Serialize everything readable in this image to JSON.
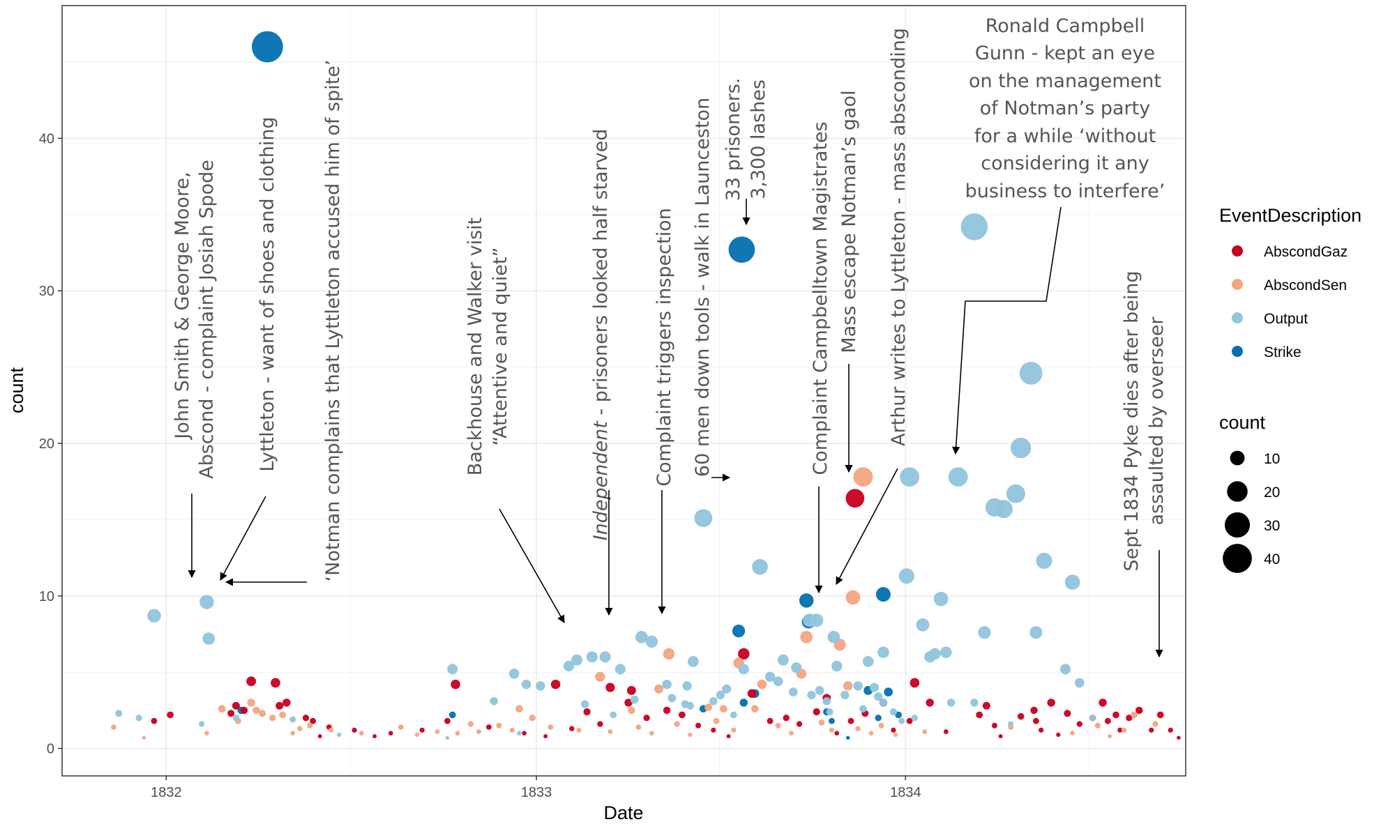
{
  "chart_data": {
    "type": "scatter",
    "xlabel": "Date",
    "ylabel": "count",
    "x_range": [
      "1831-09-20",
      "1834-10-05"
    ],
    "ylim": [
      -1.8,
      48.7
    ],
    "x_ticks": [
      {
        "date": "1832-01-01",
        "label": "1832"
      },
      {
        "date": "1833-01-01",
        "label": "1833"
      },
      {
        "date": "1834-01-01",
        "label": "1834"
      }
    ],
    "x_minor_ticks": [
      "1832-07-01",
      "1833-07-01",
      "1834-07-01"
    ],
    "y_ticks": [
      0,
      10,
      20,
      30,
      40
    ],
    "y_minor_ticks": [
      5,
      15,
      25,
      35,
      45
    ],
    "grid": true,
    "legend_position": "right",
    "colors": {
      "AbscondGaz": "#ca0020",
      "AbscondSen": "#f4a582",
      "Output": "#92c5de",
      "Strike": "#0571b0"
    },
    "legend": {
      "color_title": "EventDescription",
      "color_items": [
        "AbscondGaz",
        "AbscondSen",
        "Output",
        "Strike"
      ],
      "size_title": "count",
      "size_items": [
        10,
        20,
        30,
        40
      ]
    },
    "series": [
      {
        "name": "Strike",
        "points": [
          [
            "1832-04-10",
            46
          ],
          [
            "1833-07-23",
            32.7
          ],
          [
            "1833-07-20",
            7.7
          ],
          [
            "1833-09-25",
            9.7
          ],
          [
            "1833-09-27",
            8.3
          ],
          [
            "1833-12-10",
            10.1
          ],
          [
            "1832-03-15",
            2.5
          ],
          [
            "1832-10-10",
            2.2
          ],
          [
            "1833-06-15",
            2.6
          ],
          [
            "1833-07-25",
            3.0
          ],
          [
            "1833-08-05",
            3.6
          ],
          [
            "1833-10-15",
            2.4
          ],
          [
            "1833-11-25",
            3.8
          ],
          [
            "1833-12-15",
            3.7
          ],
          [
            "1833-12-25",
            2.2
          ],
          [
            "1833-10-20",
            1.8
          ],
          [
            "1833-11-05",
            0.7
          ],
          [
            "1833-12-05",
            2.0
          ]
        ]
      },
      {
        "name": "AbscondGaz",
        "points": [
          [
            "1833-11-12",
            16.4
          ],
          [
            "1833-07-25",
            6.2
          ],
          [
            "1832-03-25",
            4.4
          ],
          [
            "1832-04-18",
            4.3
          ],
          [
            "1832-10-13",
            4.2
          ],
          [
            "1833-01-20",
            4.2
          ],
          [
            "1833-03-15",
            4.0
          ],
          [
            "1833-04-05",
            3.8
          ],
          [
            "1833-08-02",
            3.6
          ],
          [
            "1833-04-02",
            3.0
          ],
          [
            "1833-10-15",
            3.3
          ],
          [
            "1833-12-10",
            3.0
          ],
          [
            "1834-05-25",
            3.0
          ],
          [
            "1834-05-08",
            2.5
          ],
          [
            "1834-04-25",
            2.1
          ],
          [
            "1834-01-10",
            4.3
          ],
          [
            "1834-01-25",
            3.0
          ],
          [
            "1834-03-15",
            2.2
          ],
          [
            "1834-03-22",
            2.8
          ],
          [
            "1834-04-05",
            0.8
          ],
          [
            "1834-05-10",
            1.8
          ],
          [
            "1834-07-05",
            2.0
          ],
          [
            "1834-07-15",
            3.0
          ],
          [
            "1834-07-20",
            1.8
          ],
          [
            "1834-07-28",
            2.2
          ],
          [
            "1834-08-10",
            2.0
          ],
          [
            "1834-08-20",
            2.5
          ],
          [
            "1834-09-01",
            1.2
          ],
          [
            "1834-09-10",
            2.2
          ],
          [
            "1834-09-20",
            1.2
          ],
          [
            "1834-09-28",
            0.7
          ],
          [
            "1834-06-22",
            1.6
          ],
          [
            "1834-06-10",
            2.3
          ],
          [
            "1834-02-10",
            1.1
          ],
          [
            "1832-01-05",
            2.2
          ],
          [
            "1831-12-20",
            1.8
          ],
          [
            "1832-03-05",
            2.3
          ],
          [
            "1832-03-10",
            2.8
          ],
          [
            "1832-03-18",
            2.5
          ],
          [
            "1832-04-22",
            2.8
          ],
          [
            "1832-04-29",
            3.0
          ],
          [
            "1832-05-18",
            2.0
          ],
          [
            "1832-05-25",
            1.8
          ],
          [
            "1832-06-01",
            0.8
          ],
          [
            "1832-06-10",
            1.4
          ],
          [
            "1832-07-05",
            1.2
          ],
          [
            "1832-07-25",
            0.8
          ],
          [
            "1832-08-10",
            1.0
          ],
          [
            "1832-09-10",
            1.2
          ],
          [
            "1832-10-05",
            1.8
          ],
          [
            "1832-11-15",
            1.4
          ],
          [
            "1832-12-20",
            1.0
          ],
          [
            "1833-01-10",
            0.8
          ],
          [
            "1833-02-05",
            1.3
          ],
          [
            "1833-02-20",
            2.4
          ],
          [
            "1833-03-05",
            1.6
          ],
          [
            "1833-04-20",
            2.0
          ],
          [
            "1833-05-10",
            2.5
          ],
          [
            "1833-05-25",
            2.2
          ],
          [
            "1833-06-10",
            1.5
          ],
          [
            "1833-06-25",
            1.2
          ],
          [
            "1833-07-10",
            0.8
          ],
          [
            "1833-08-20",
            1.8
          ],
          [
            "1833-09-05",
            2.0
          ],
          [
            "1833-09-18",
            1.6
          ],
          [
            "1833-10-05",
            2.4
          ],
          [
            "1833-10-25",
            1.0
          ],
          [
            "1833-11-08",
            1.8
          ],
          [
            "1833-11-22",
            2.3
          ],
          [
            "1833-12-20",
            1.2
          ],
          [
            "1834-01-05",
            1.8
          ],
          [
            "1834-03-30",
            1.5
          ],
          [
            "1834-05-15",
            1.2
          ],
          [
            "1834-06-01",
            0.9
          ],
          [
            "1834-08-01",
            1.2
          ]
        ]
      },
      {
        "name": "AbscondSen",
        "points": [
          [
            "1833-11-20",
            17.8
          ],
          [
            "1833-11-10",
            9.9
          ],
          [
            "1833-09-25",
            7.3
          ],
          [
            "1833-10-28",
            6.8
          ],
          [
            "1833-07-20",
            5.6
          ],
          [
            "1833-08-12",
            4.2
          ],
          [
            "1833-03-05",
            4.7
          ],
          [
            "1833-05-12",
            6.2
          ],
          [
            "1833-09-20",
            4.9
          ],
          [
            "1833-05-02",
            3.9
          ],
          [
            "1833-04-05",
            2.5
          ],
          [
            "1832-03-25",
            3.0
          ],
          [
            "1832-03-30",
            2.5
          ],
          [
            "1832-04-15",
            2.0
          ],
          [
            "1832-12-15",
            2.6
          ],
          [
            "1833-11-05",
            4.1
          ],
          [
            "1833-06-20",
            2.7
          ],
          [
            "1833-07-05",
            2.6
          ],
          [
            "1833-08-05",
            2.6
          ],
          [
            "1834-08-15",
            2.2
          ],
          [
            "1834-08-05",
            1.2
          ],
          [
            "1831-11-10",
            1.4
          ],
          [
            "1831-12-10",
            0.7
          ],
          [
            "1832-02-10",
            1.0
          ],
          [
            "1832-02-25",
            2.6
          ],
          [
            "1832-03-12",
            1.8
          ],
          [
            "1832-04-05",
            2.3
          ],
          [
            "1832-04-25",
            2.2
          ],
          [
            "1832-05-05",
            1.0
          ],
          [
            "1832-05-12",
            1.3
          ],
          [
            "1832-05-22",
            1.5
          ],
          [
            "1832-06-12",
            1.2
          ],
          [
            "1832-07-12",
            1.0
          ],
          [
            "1832-08-20",
            1.4
          ],
          [
            "1832-09-05",
            0.9
          ],
          [
            "1832-09-25",
            1.1
          ],
          [
            "1832-10-15",
            1.0
          ],
          [
            "1832-10-28",
            1.6
          ],
          [
            "1832-11-05",
            1.1
          ],
          [
            "1832-11-25",
            1.5
          ],
          [
            "1832-12-08",
            1.2
          ],
          [
            "1832-12-28",
            2.0
          ],
          [
            "1833-01-15",
            1.4
          ],
          [
            "1833-02-12",
            1.2
          ],
          [
            "1833-03-15",
            1.1
          ],
          [
            "1833-04-12",
            1.4
          ],
          [
            "1833-04-25",
            1.0
          ],
          [
            "1833-05-20",
            1.6
          ],
          [
            "1833-06-02",
            0.9
          ],
          [
            "1833-06-28",
            1.8
          ],
          [
            "1833-07-15",
            1.2
          ],
          [
            "1833-08-28",
            1.5
          ],
          [
            "1833-09-10",
            1.0
          ],
          [
            "1833-10-10",
            1.7
          ],
          [
            "1833-10-20",
            1.2
          ],
          [
            "1833-11-15",
            1.3
          ],
          [
            "1833-11-28",
            1.0
          ],
          [
            "1833-12-08",
            1.5
          ],
          [
            "1833-12-22",
            0.9
          ],
          [
            "1834-01-20",
            1.1
          ],
          [
            "1834-04-15",
            1.4
          ],
          [
            "1834-06-15",
            1.0
          ],
          [
            "1834-07-10",
            1.5
          ],
          [
            "1834-07-22",
            0.8
          ],
          [
            "1834-09-05",
            1.6
          ]
        ]
      },
      {
        "name": "Output",
        "points": [
          [
            "1834-03-10",
            34.2
          ],
          [
            "1834-05-05",
            24.6
          ],
          [
            "1834-04-25",
            19.7
          ],
          [
            "1834-01-05",
            17.8
          ],
          [
            "1834-02-22",
            17.8
          ],
          [
            "1834-04-20",
            16.7
          ],
          [
            "1834-03-30",
            15.8
          ],
          [
            "1834-04-08",
            15.7
          ],
          [
            "1834-05-18",
            12.3
          ],
          [
            "1834-02-05",
            9.8
          ],
          [
            "1834-06-15",
            10.9
          ],
          [
            "1834-01-02",
            11.3
          ],
          [
            "1833-06-15",
            15.1
          ],
          [
            "1833-08-10",
            11.9
          ],
          [
            "1833-10-05",
            8.4
          ],
          [
            "1833-09-28",
            8.4
          ],
          [
            "1833-10-22",
            7.3
          ],
          [
            "1833-04-15",
            7.3
          ],
          [
            "1833-04-25",
            7.0
          ],
          [
            "1834-01-18",
            8.1
          ],
          [
            "1834-03-20",
            7.6
          ],
          [
            "1834-05-10",
            7.6
          ],
          [
            "1834-01-25",
            6.0
          ],
          [
            "1834-01-30",
            6.2
          ],
          [
            "1834-02-10",
            6.3
          ],
          [
            "1833-12-10",
            6.3
          ],
          [
            "1833-11-25",
            5.7
          ],
          [
            "1832-02-10",
            9.6
          ],
          [
            "1831-12-20",
            8.7
          ],
          [
            "1832-02-12",
            7.2
          ],
          [
            "1833-02-25",
            6.0
          ],
          [
            "1833-03-25",
            5.2
          ],
          [
            "1833-02-10",
            5.8
          ],
          [
            "1833-02-02",
            5.4
          ],
          [
            "1832-10-10",
            5.2
          ],
          [
            "1832-12-10",
            4.9
          ],
          [
            "1833-01-05",
            4.1
          ],
          [
            "1832-12-22",
            4.2
          ],
          [
            "1832-11-20",
            3.1
          ],
          [
            "1833-03-10",
            6.0
          ],
          [
            "1833-05-10",
            4.2
          ],
          [
            "1833-05-30",
            4.1
          ],
          [
            "1833-06-05",
            5.7
          ],
          [
            "1833-07-25",
            5.2
          ],
          [
            "1833-08-20",
            4.7
          ],
          [
            "1833-09-02",
            5.8
          ],
          [
            "1833-09-15",
            5.3
          ],
          [
            "1833-10-25",
            5.4
          ],
          [
            "1833-11-15",
            4.1
          ],
          [
            "1833-12-01",
            4.0
          ],
          [
            "1833-12-10",
            3.0
          ],
          [
            "1833-12-20",
            2.4
          ],
          [
            "1834-03-10",
            3.0
          ],
          [
            "1834-06-08",
            5.2
          ],
          [
            "1834-06-22",
            4.3
          ],
          [
            "1834-04-15",
            1.6
          ],
          [
            "1834-07-05",
            2.0
          ],
          [
            "1831-11-15",
            2.3
          ],
          [
            "1831-12-05",
            2.0
          ],
          [
            "1832-02-05",
            1.6
          ],
          [
            "1832-03-10",
            2.0
          ],
          [
            "1832-05-05",
            1.9
          ],
          [
            "1832-06-20",
            0.9
          ],
          [
            "1833-05-15",
            3.3
          ],
          [
            "1833-05-28",
            2.9
          ],
          [
            "1833-06-02",
            2.8
          ],
          [
            "1833-06-25",
            3.1
          ],
          [
            "1833-07-02",
            3.5
          ],
          [
            "1833-07-08",
            3.9
          ],
          [
            "1833-08-28",
            4.4
          ],
          [
            "1833-09-12",
            3.7
          ],
          [
            "1833-09-30",
            3.5
          ],
          [
            "1833-10-08",
            3.8
          ],
          [
            "1833-10-15",
            3.1
          ],
          [
            "1833-10-18",
            2.4
          ],
          [
            "1833-11-02",
            3.5
          ],
          [
            "1833-11-20",
            2.6
          ],
          [
            "1833-12-05",
            3.4
          ],
          [
            "1834-01-10",
            2.0
          ],
          [
            "1834-02-15",
            3.0
          ],
          [
            "1833-02-18",
            2.9
          ],
          [
            "1833-03-18",
            2.2
          ],
          [
            "1833-04-08",
            3.2
          ],
          [
            "1833-07-15",
            2.2
          ],
          [
            "1833-12-28",
            1.8
          ],
          [
            "1832-12-15",
            1.0
          ],
          [
            "1832-10-05",
            0.7
          ]
        ]
      }
    ],
    "annotations": [
      "John Smith & George Moore,",
      "Abscond - complaint  Josiah Spode",
      "Lyttleton - want of shoes and clothing",
      "‘Notman complains that Lyttleton accused him of spite’",
      "Backhouse and Walker visit",
      "“Attentive and quiet”",
      "Independent",
      " - prisoners looked half starved",
      "Complaint triggers inspection",
      "60 men down tools - walk in Launceston",
      "33 prisoners.",
      "3,300 lashes",
      "Complaint Campbelltown Magistrates",
      "Mass escape Notman’s gaol",
      "Arthur writes to Lyttleton - mass absconding",
      "Ronald Campbell",
      "Gunn - kept an eye",
      "on the management",
      "of Notman’s party",
      "for a while ‘without",
      "considering it any",
      "business to interfere’",
      "Sept 1834 Pyke dies after being",
      "assaulted by overseer"
    ]
  }
}
